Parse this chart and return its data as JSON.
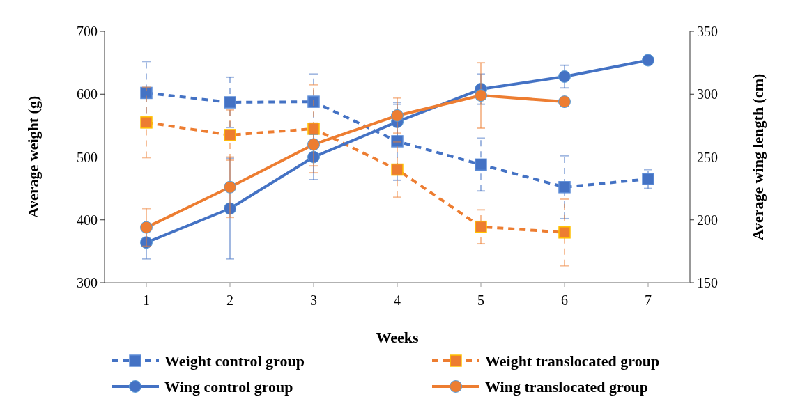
{
  "chart_data": {
    "type": "line",
    "xlabel": "Weeks",
    "ylabel": "Average weight (g)",
    "y2label": "Average wing length (cm)",
    "x": [
      1,
      2,
      3,
      4,
      5,
      6,
      7
    ],
    "xlim": [
      0.5,
      7.5
    ],
    "xticks": [
      1,
      2,
      3,
      4,
      5,
      6,
      7
    ],
    "ylim": [
      300,
      700
    ],
    "yticks": [
      300,
      400,
      500,
      600,
      700
    ],
    "y2lim": [
      150,
      350
    ],
    "y2ticks": [
      150,
      200,
      250,
      300,
      350
    ],
    "grid": false,
    "legend": "bottom",
    "series": [
      {
        "name": "Weight control group",
        "color": "#4472c4",
        "line_style": "dashed",
        "marker": "square",
        "values": [
          602,
          587,
          588,
          525,
          488,
          452,
          465
        ],
        "errors": [
          50,
          40,
          44,
          62,
          42,
          50,
          15
        ]
      },
      {
        "name": "Weight translocated group",
        "color": "#ed7d31",
        "line_style": "dashed",
        "marker": "square",
        "values": [
          555,
          535,
          545,
          480,
          389,
          380,
          null
        ],
        "errors": [
          56,
          40,
          70,
          44,
          27,
          53,
          null
        ]
      },
      {
        "name": "Wing control group",
        "color": "#4472c4",
        "line_style": "solid",
        "marker": "circle",
        "axis": "y2",
        "values": [
          182,
          209,
          250,
          278,
          304,
          314,
          327
        ],
        "errors": [
          13,
          40,
          18,
          14,
          12,
          9,
          null
        ]
      },
      {
        "name": "Wing translocated group",
        "color": "#ed7d31",
        "line_style": "solid",
        "marker": "circle",
        "axis": "y2",
        "values": [
          194,
          226,
          260,
          283,
          299,
          294,
          null
        ],
        "errors": [
          15,
          24,
          17,
          14,
          26,
          null,
          null
        ]
      }
    ]
  }
}
